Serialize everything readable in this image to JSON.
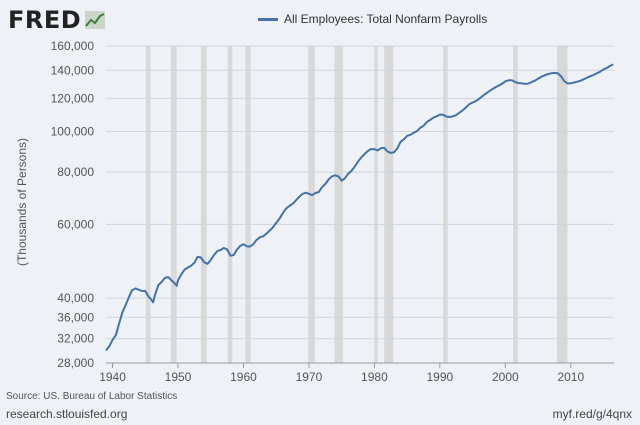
{
  "brand": {
    "logo_text": "FRED",
    "logo_icon": "chart-line-icon"
  },
  "colors": {
    "series": "#4572a7",
    "recession": "#d9d9d9",
    "grid": "#cfd5dc",
    "background": "#eef2f7"
  },
  "footer": {
    "source": "Source: US. Bureau of Labor Statistics",
    "site": "research.stlouisfed.org",
    "short_link": "myf.red/g/4qnx"
  },
  "chart_data": {
    "type": "line",
    "title": "",
    "xlabel": "",
    "ylabel": "(Thousands of Persons)",
    "y_scale": "log",
    "xlim": [
      1939,
      2016.6
    ],
    "ylim": [
      28000,
      160000
    ],
    "grid": true,
    "legend_position": "top",
    "x_ticks": [
      1940,
      1950,
      1960,
      1970,
      1980,
      1990,
      2000,
      2010
    ],
    "x_tick_labels": [
      "1940",
      "1950",
      "1960",
      "1970",
      "1980",
      "1990",
      "2000",
      "2010"
    ],
    "y_ticks": [
      28000,
      32000,
      36000,
      40000,
      60000,
      80000,
      100000,
      120000,
      140000,
      160000
    ],
    "y_tick_labels": [
      "28,000",
      "32,000",
      "36,000",
      "40,000",
      "60,000",
      "80,000",
      "100,000",
      "120,000",
      "140,000",
      "160,000"
    ],
    "recessions": [
      [
        1945.1,
        1945.8
      ],
      [
        1948.9,
        1949.8
      ],
      [
        1953.5,
        1954.4
      ],
      [
        1957.6,
        1958.3
      ],
      [
        1960.3,
        1961.1
      ],
      [
        1969.9,
        1970.9
      ],
      [
        1973.9,
        1975.2
      ],
      [
        1980.0,
        1980.5
      ],
      [
        1981.5,
        1982.9
      ],
      [
        1990.5,
        1991.2
      ],
      [
        2001.2,
        2001.9
      ],
      [
        2007.9,
        2009.5
      ]
    ],
    "series": [
      {
        "name": "All Employees: Total Nonfarm Payrolls",
        "color": "#4572a7",
        "x": [
          1939.0,
          1939.5,
          1940.0,
          1940.5,
          1941.0,
          1941.5,
          1942.0,
          1942.5,
          1943.0,
          1943.5,
          1944.0,
          1944.5,
          1945.0,
          1945.5,
          1945.8,
          1946.2,
          1946.5,
          1947.0,
          1947.5,
          1948.0,
          1948.5,
          1949.0,
          1949.5,
          1949.8,
          1950.0,
          1950.5,
          1951.0,
          1951.5,
          1952.0,
          1952.5,
          1953.0,
          1953.5,
          1954.0,
          1954.5,
          1955.0,
          1955.5,
          1956.0,
          1956.5,
          1957.0,
          1957.5,
          1958.0,
          1958.5,
          1959.0,
          1959.5,
          1960.0,
          1960.5,
          1961.0,
          1961.5,
          1962.0,
          1962.5,
          1963.0,
          1963.5,
          1964.0,
          1964.5,
          1965.0,
          1965.5,
          1966.0,
          1966.5,
          1967.0,
          1967.5,
          1968.0,
          1968.5,
          1969.0,
          1969.5,
          1970.0,
          1970.5,
          1971.0,
          1971.5,
          1972.0,
          1972.5,
          1973.0,
          1973.5,
          1974.0,
          1974.5,
          1975.0,
          1975.5,
          1976.0,
          1976.5,
          1977.0,
          1977.5,
          1978.0,
          1978.5,
          1979.0,
          1979.5,
          1980.0,
          1980.5,
          1981.0,
          1981.5,
          1982.0,
          1982.5,
          1983.0,
          1983.5,
          1984.0,
          1984.5,
          1985.0,
          1985.5,
          1986.0,
          1986.5,
          1987.0,
          1987.5,
          1988.0,
          1988.5,
          1989.0,
          1989.5,
          1990.0,
          1990.5,
          1991.0,
          1991.5,
          1992.0,
          1992.5,
          1993.0,
          1993.5,
          1994.0,
          1994.5,
          1995.0,
          1995.5,
          1996.0,
          1996.5,
          1997.0,
          1997.5,
          1998.0,
          1998.5,
          1999.0,
          1999.5,
          2000.0,
          2000.5,
          2001.0,
          2001.5,
          2002.0,
          2002.5,
          2003.0,
          2003.5,
          2004.0,
          2004.5,
          2005.0,
          2005.5,
          2006.0,
          2006.5,
          2007.0,
          2007.5,
          2008.0,
          2008.5,
          2009.0,
          2009.5,
          2010.0,
          2010.5,
          2011.0,
          2011.5,
          2012.0,
          2012.5,
          2013.0,
          2013.5,
          2014.0,
          2014.5,
          2015.0,
          2015.5,
          2016.0,
          2016.5
        ],
        "values": [
          30000,
          30700,
          31800,
          32600,
          34800,
          37000,
          38500,
          40200,
          41800,
          42200,
          41900,
          41600,
          41600,
          40300,
          39900,
          39100,
          40800,
          43000,
          43700,
          44700,
          44900,
          44100,
          43400,
          42800,
          44100,
          45600,
          46800,
          47300,
          47800,
          48600,
          50200,
          50000,
          48700,
          48300,
          49300,
          50700,
          51800,
          52100,
          52700,
          52300,
          50500,
          50700,
          52200,
          53300,
          53800,
          53200,
          53100,
          53800,
          55100,
          55900,
          56200,
          57000,
          58000,
          59000,
          60500,
          61900,
          63800,
          65400,
          66400,
          67200,
          68400,
          69800,
          70900,
          71400,
          71000,
          70500,
          71300,
          71700,
          73600,
          74900,
          76800,
          78100,
          78600,
          78100,
          76300,
          77300,
          79300,
          80600,
          82500,
          84700,
          86700,
          88400,
          89800,
          90800,
          90700,
          90100,
          91200,
          91400,
          89600,
          88900,
          89200,
          91100,
          94500,
          95800,
          97600,
          98200,
          99300,
          100200,
          102000,
          103200,
          105300,
          106500,
          107900,
          108700,
          109700,
          109600,
          108500,
          108300,
          108700,
          109400,
          110900,
          112400,
          114300,
          116200,
          117300,
          118200,
          119700,
          121400,
          123100,
          124700,
          126200,
          127500,
          128800,
          130000,
          131800,
          132500,
          132500,
          131300,
          130500,
          130300,
          129900,
          130100,
          131200,
          132200,
          133700,
          135000,
          136100,
          137100,
          137700,
          138000,
          137800,
          135500,
          132000,
          130200,
          130300,
          130900,
          131500,
          132200,
          133300,
          134500,
          135500,
          136500,
          137700,
          139000,
          140700,
          141800,
          143400,
          144600
        ]
      }
    ]
  }
}
